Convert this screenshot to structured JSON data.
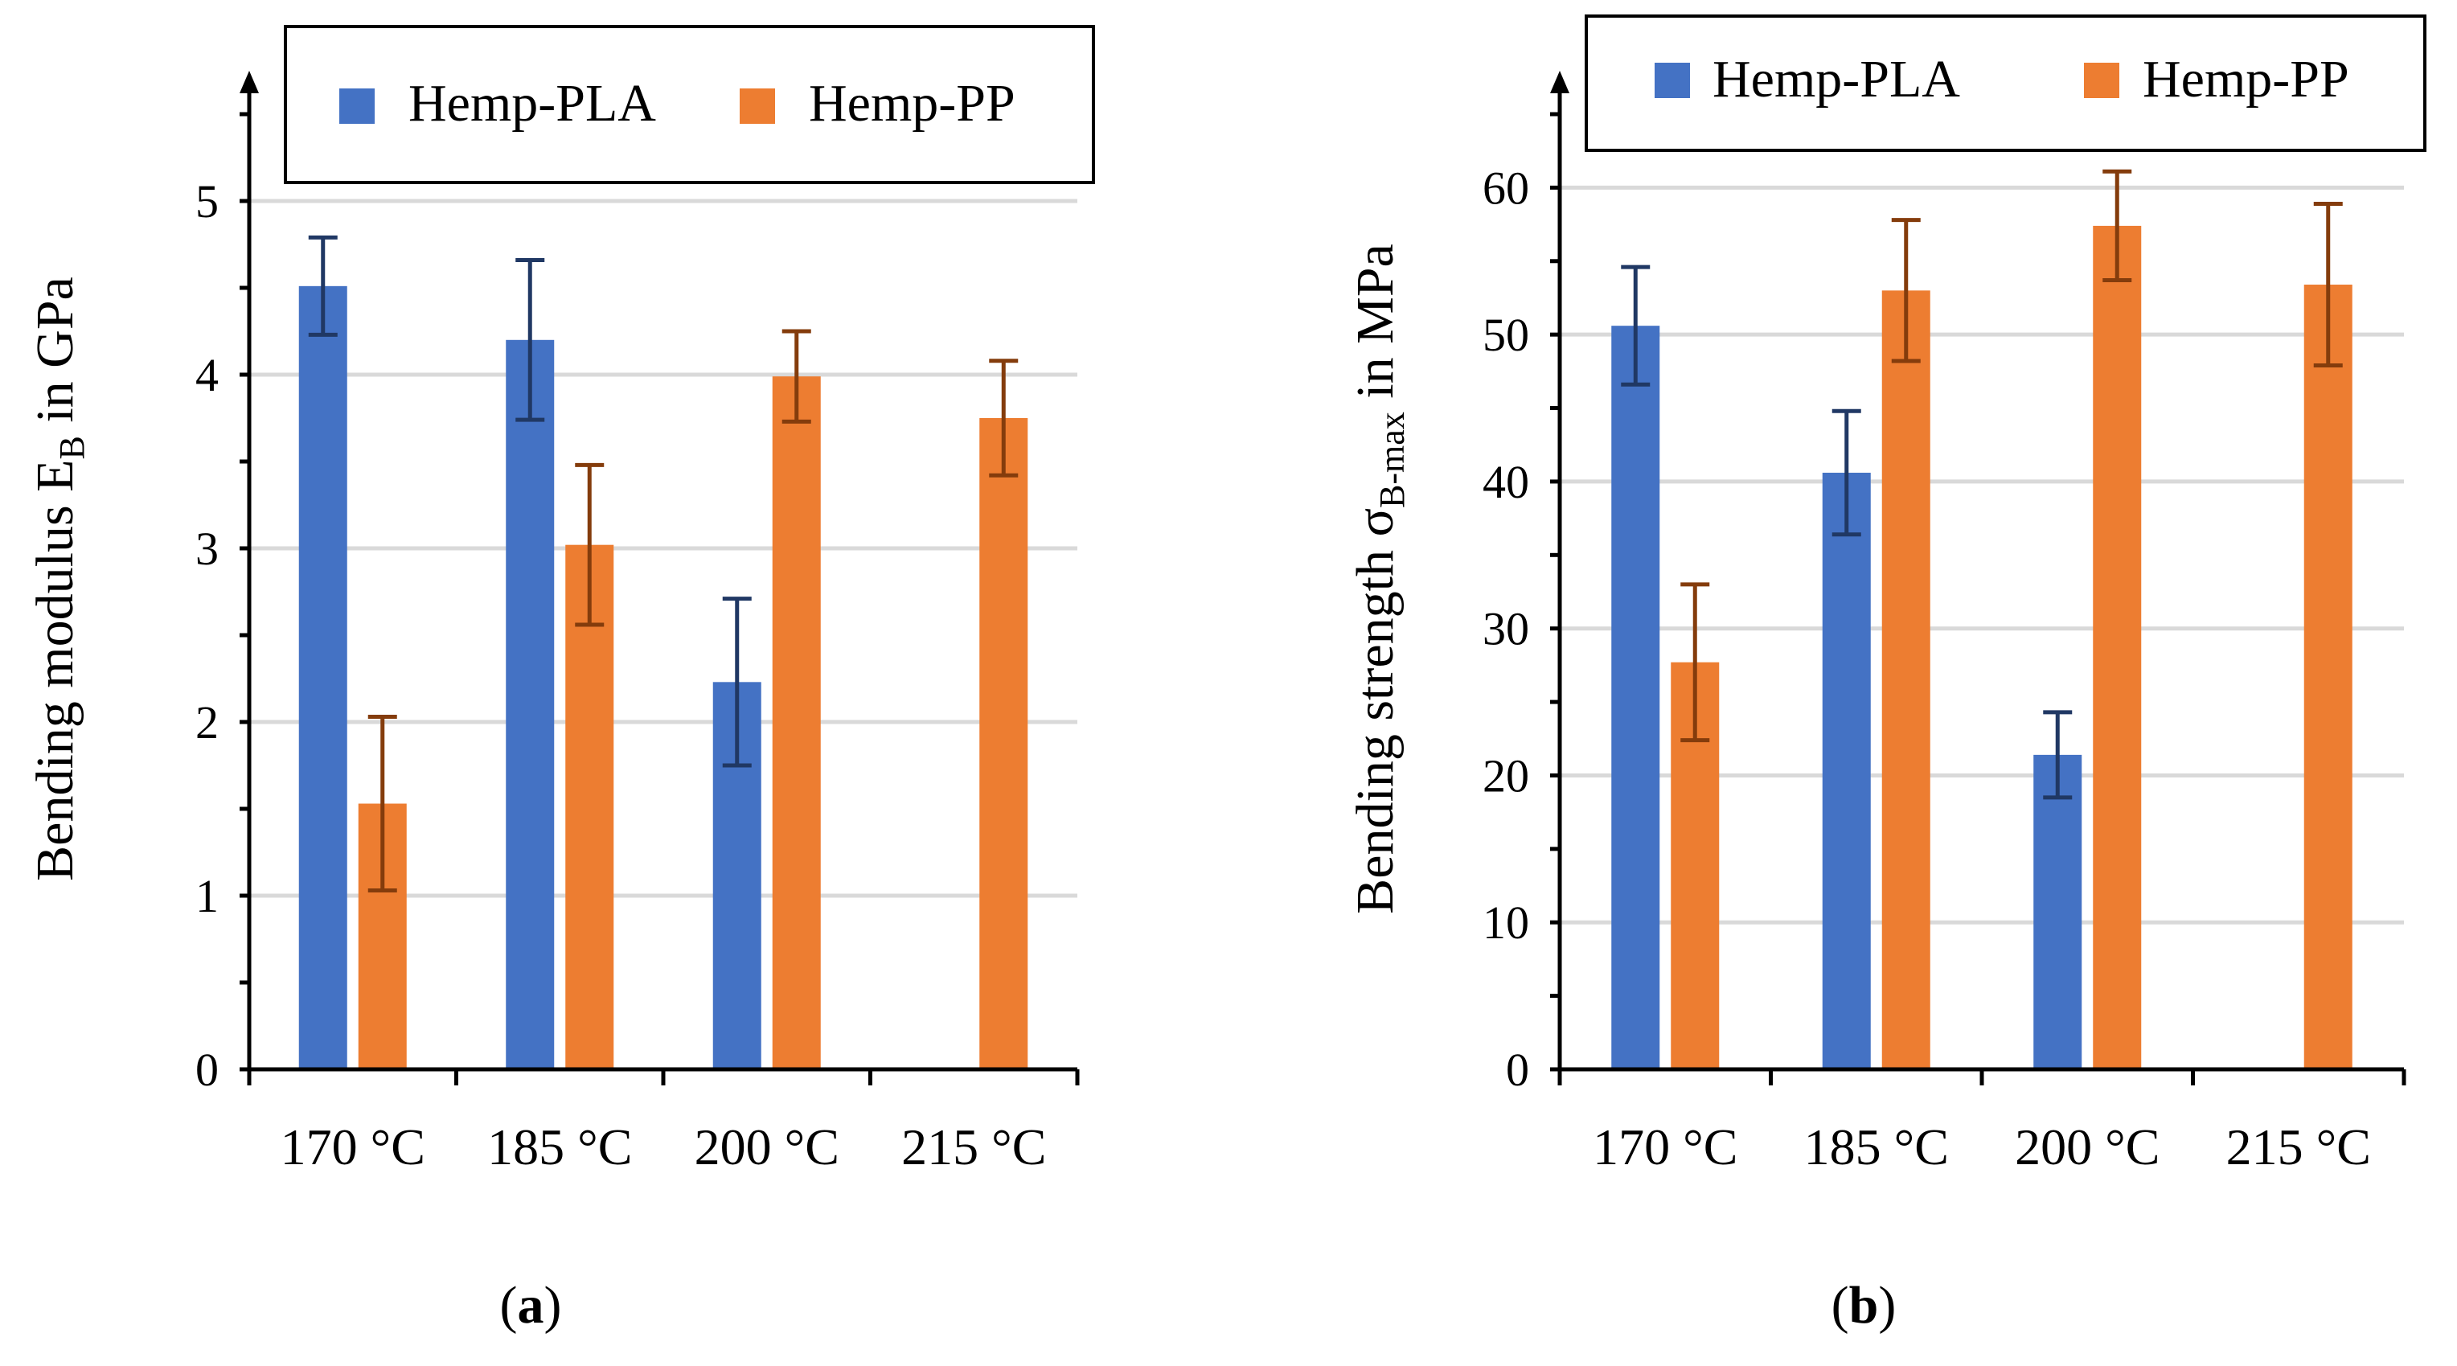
{
  "colors": {
    "pla": "#4472C4",
    "pp": "#ED7D31",
    "pla_err": "#203864",
    "pp_err": "#843C0C",
    "grid": "#D9D9D9",
    "axis": "#000000"
  },
  "chart_data": [
    {
      "type": "bar",
      "panel_label": "a",
      "categories": [
        "170 °C",
        "185 °C",
        "200 °C",
        "215 °C"
      ],
      "ylabel_main": "Bending modulus E",
      "ylabel_sub": "B",
      "ylabel_unit": " in GPa",
      "ylim": [
        0,
        5.5
      ],
      "yticks": [
        0,
        1,
        2,
        3,
        4,
        5
      ],
      "grid": true,
      "legend_position": "top",
      "series": [
        {
          "name": "Hemp-PLA",
          "values": [
            4.51,
            4.2,
            2.23,
            null
          ],
          "errors": [
            0.28,
            0.46,
            0.48,
            null
          ]
        },
        {
          "name": "Hemp-PP",
          "values": [
            1.53,
            3.02,
            3.99,
            3.75
          ],
          "errors": [
            0.5,
            0.46,
            0.26,
            0.33
          ]
        }
      ]
    },
    {
      "type": "bar",
      "panel_label": "b",
      "categories": [
        "170 °C",
        "185 °C",
        "200 °C",
        "215 °C"
      ],
      "ylabel_main": "Bending strength σ",
      "ylabel_sub": "B-max",
      "ylabel_unit": " in MPa",
      "ylim": [
        0,
        65
      ],
      "yticks": [
        0,
        10,
        20,
        30,
        40,
        50,
        60
      ],
      "grid": true,
      "legend_position": "top",
      "series": [
        {
          "name": "Hemp-PLA",
          "values": [
            50.6,
            40.6,
            21.4,
            null
          ],
          "errors": [
            4.0,
            4.2,
            2.9,
            null
          ]
        },
        {
          "name": "Hemp-PP",
          "values": [
            27.7,
            53.0,
            57.4,
            53.4
          ],
          "errors": [
            5.3,
            4.8,
            3.7,
            5.5
          ]
        }
      ]
    }
  ]
}
